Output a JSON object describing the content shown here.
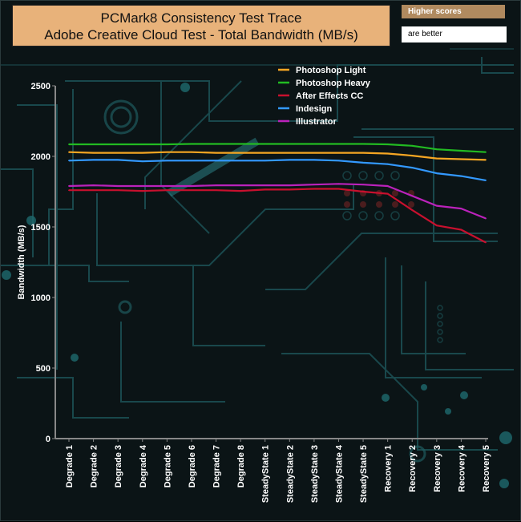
{
  "header": {
    "title_line1": "PCMark8 Consistency Test Trace",
    "title_line2": "Adobe Creative Cloud Test - Total Bandwidth (MB/s)",
    "badge_top": "Higher scores",
    "badge_bottom": "are better"
  },
  "chart_data": {
    "type": "line",
    "title": "PCMark8 Consistency Test Trace\nAdobe Creative Cloud Test - Total Bandwidth (MB/s)",
    "xlabel": "",
    "ylabel": "Bandwidth (MB/s)",
    "ylim": [
      0,
      2500
    ],
    "yticks": [
      0,
      500,
      1000,
      1500,
      2000,
      2500
    ],
    "grid": false,
    "legend_position": "top-right",
    "categories": [
      "Degrade 1",
      "Degrade 2",
      "Degrade 3",
      "Degrade 4",
      "Degrade 5",
      "Degrade 6",
      "Degrade 7",
      "Degrade 8",
      "SteadyState 1",
      "SteadyState 2",
      "SteadyState 3",
      "SteadyState 4",
      "SteadyState 5",
      "Recovery 1",
      "Recovery 2",
      "Recovery 3",
      "Recovery 4",
      "Recovery 5"
    ],
    "series": [
      {
        "name": "Photoshop Light",
        "color": "#f5a623",
        "values": [
          2030,
          2025,
          2025,
          2025,
          2030,
          2030,
          2025,
          2025,
          2025,
          2025,
          2025,
          2025,
          2025,
          2020,
          2005,
          1985,
          1980,
          1975
        ]
      },
      {
        "name": " Photoshop Heavy",
        "color": "#22bb22",
        "values": [
          2085,
          2085,
          2085,
          2085,
          2085,
          2088,
          2088,
          2088,
          2088,
          2088,
          2088,
          2088,
          2088,
          2085,
          2075,
          2050,
          2040,
          2030
        ]
      },
      {
        "name": "After Effects CC",
        "color": "#c8102e",
        "values": [
          1760,
          1760,
          1760,
          1755,
          1760,
          1760,
          1760,
          1755,
          1765,
          1765,
          1770,
          1770,
          1750,
          1735,
          1620,
          1510,
          1480,
          1390
        ]
      },
      {
        "name": "Indesign",
        "color": "#3399ff",
        "values": [
          1970,
          1975,
          1975,
          1965,
          1970,
          1970,
          1970,
          1970,
          1970,
          1975,
          1975,
          1970,
          1955,
          1945,
          1920,
          1880,
          1860,
          1830
        ]
      },
      {
        "name": "Illustrator",
        "color": "#bb22bb",
        "values": [
          1790,
          1795,
          1790,
          1790,
          1790,
          1790,
          1795,
          1795,
          1795,
          1795,
          1800,
          1805,
          1800,
          1790,
          1720,
          1650,
          1630,
          1560
        ]
      }
    ]
  }
}
